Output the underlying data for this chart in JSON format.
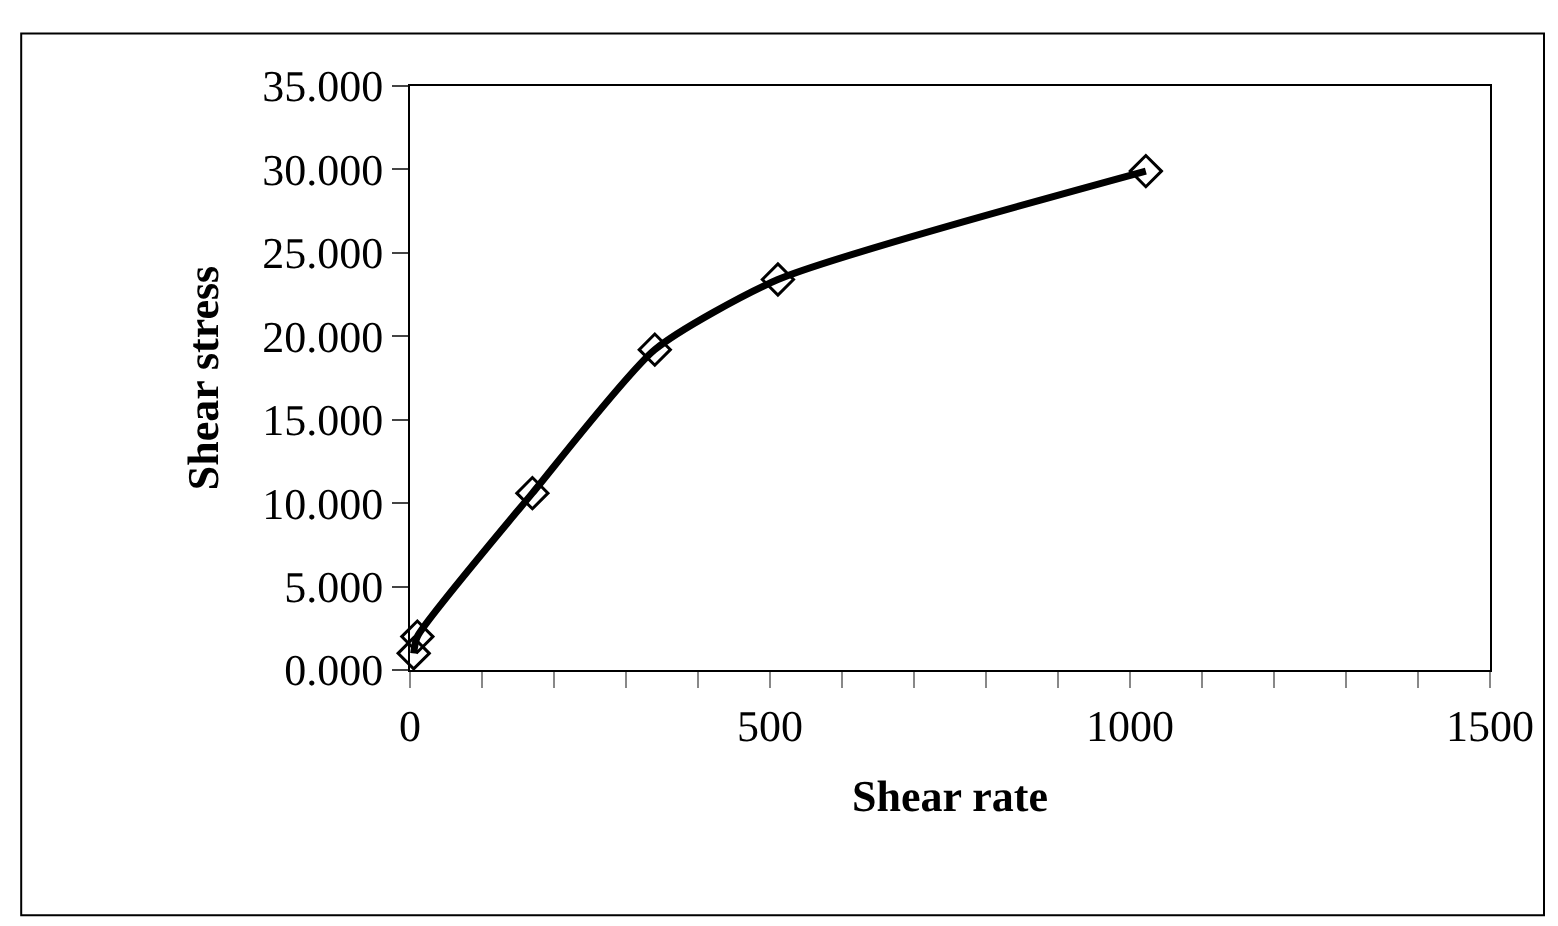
{
  "chart_data": {
    "type": "line",
    "xlabel": "Shear rate",
    "ylabel": "Shear stress",
    "x": [
      5.1,
      10.2,
      170,
      340,
      511,
      1022
    ],
    "series": [
      {
        "color": "#000000",
        "values": [
          1.0,
          2.0,
          10.6,
          19.2,
          23.4,
          29.9
        ]
      }
    ],
    "xlim": [
      0,
      1500
    ],
    "xticks": [
      0,
      500,
      1000,
      1500
    ],
    "ylim": [
      0,
      35
    ],
    "yticks": [
      {
        "value": 0,
        "label": "0.000"
      },
      {
        "value": 5,
        "label": "5.000"
      },
      {
        "value": 10,
        "label": "10.000"
      },
      {
        "value": 15,
        "label": "15.000"
      },
      {
        "value": 20,
        "label": "20.000"
      },
      {
        "value": 25,
        "label": "25.000"
      },
      {
        "value": 30,
        "label": "30.000"
      },
      {
        "value": 35,
        "label": "35.000"
      }
    ],
    "legend": false,
    "marker": "diamond",
    "line_style": "solid"
  }
}
